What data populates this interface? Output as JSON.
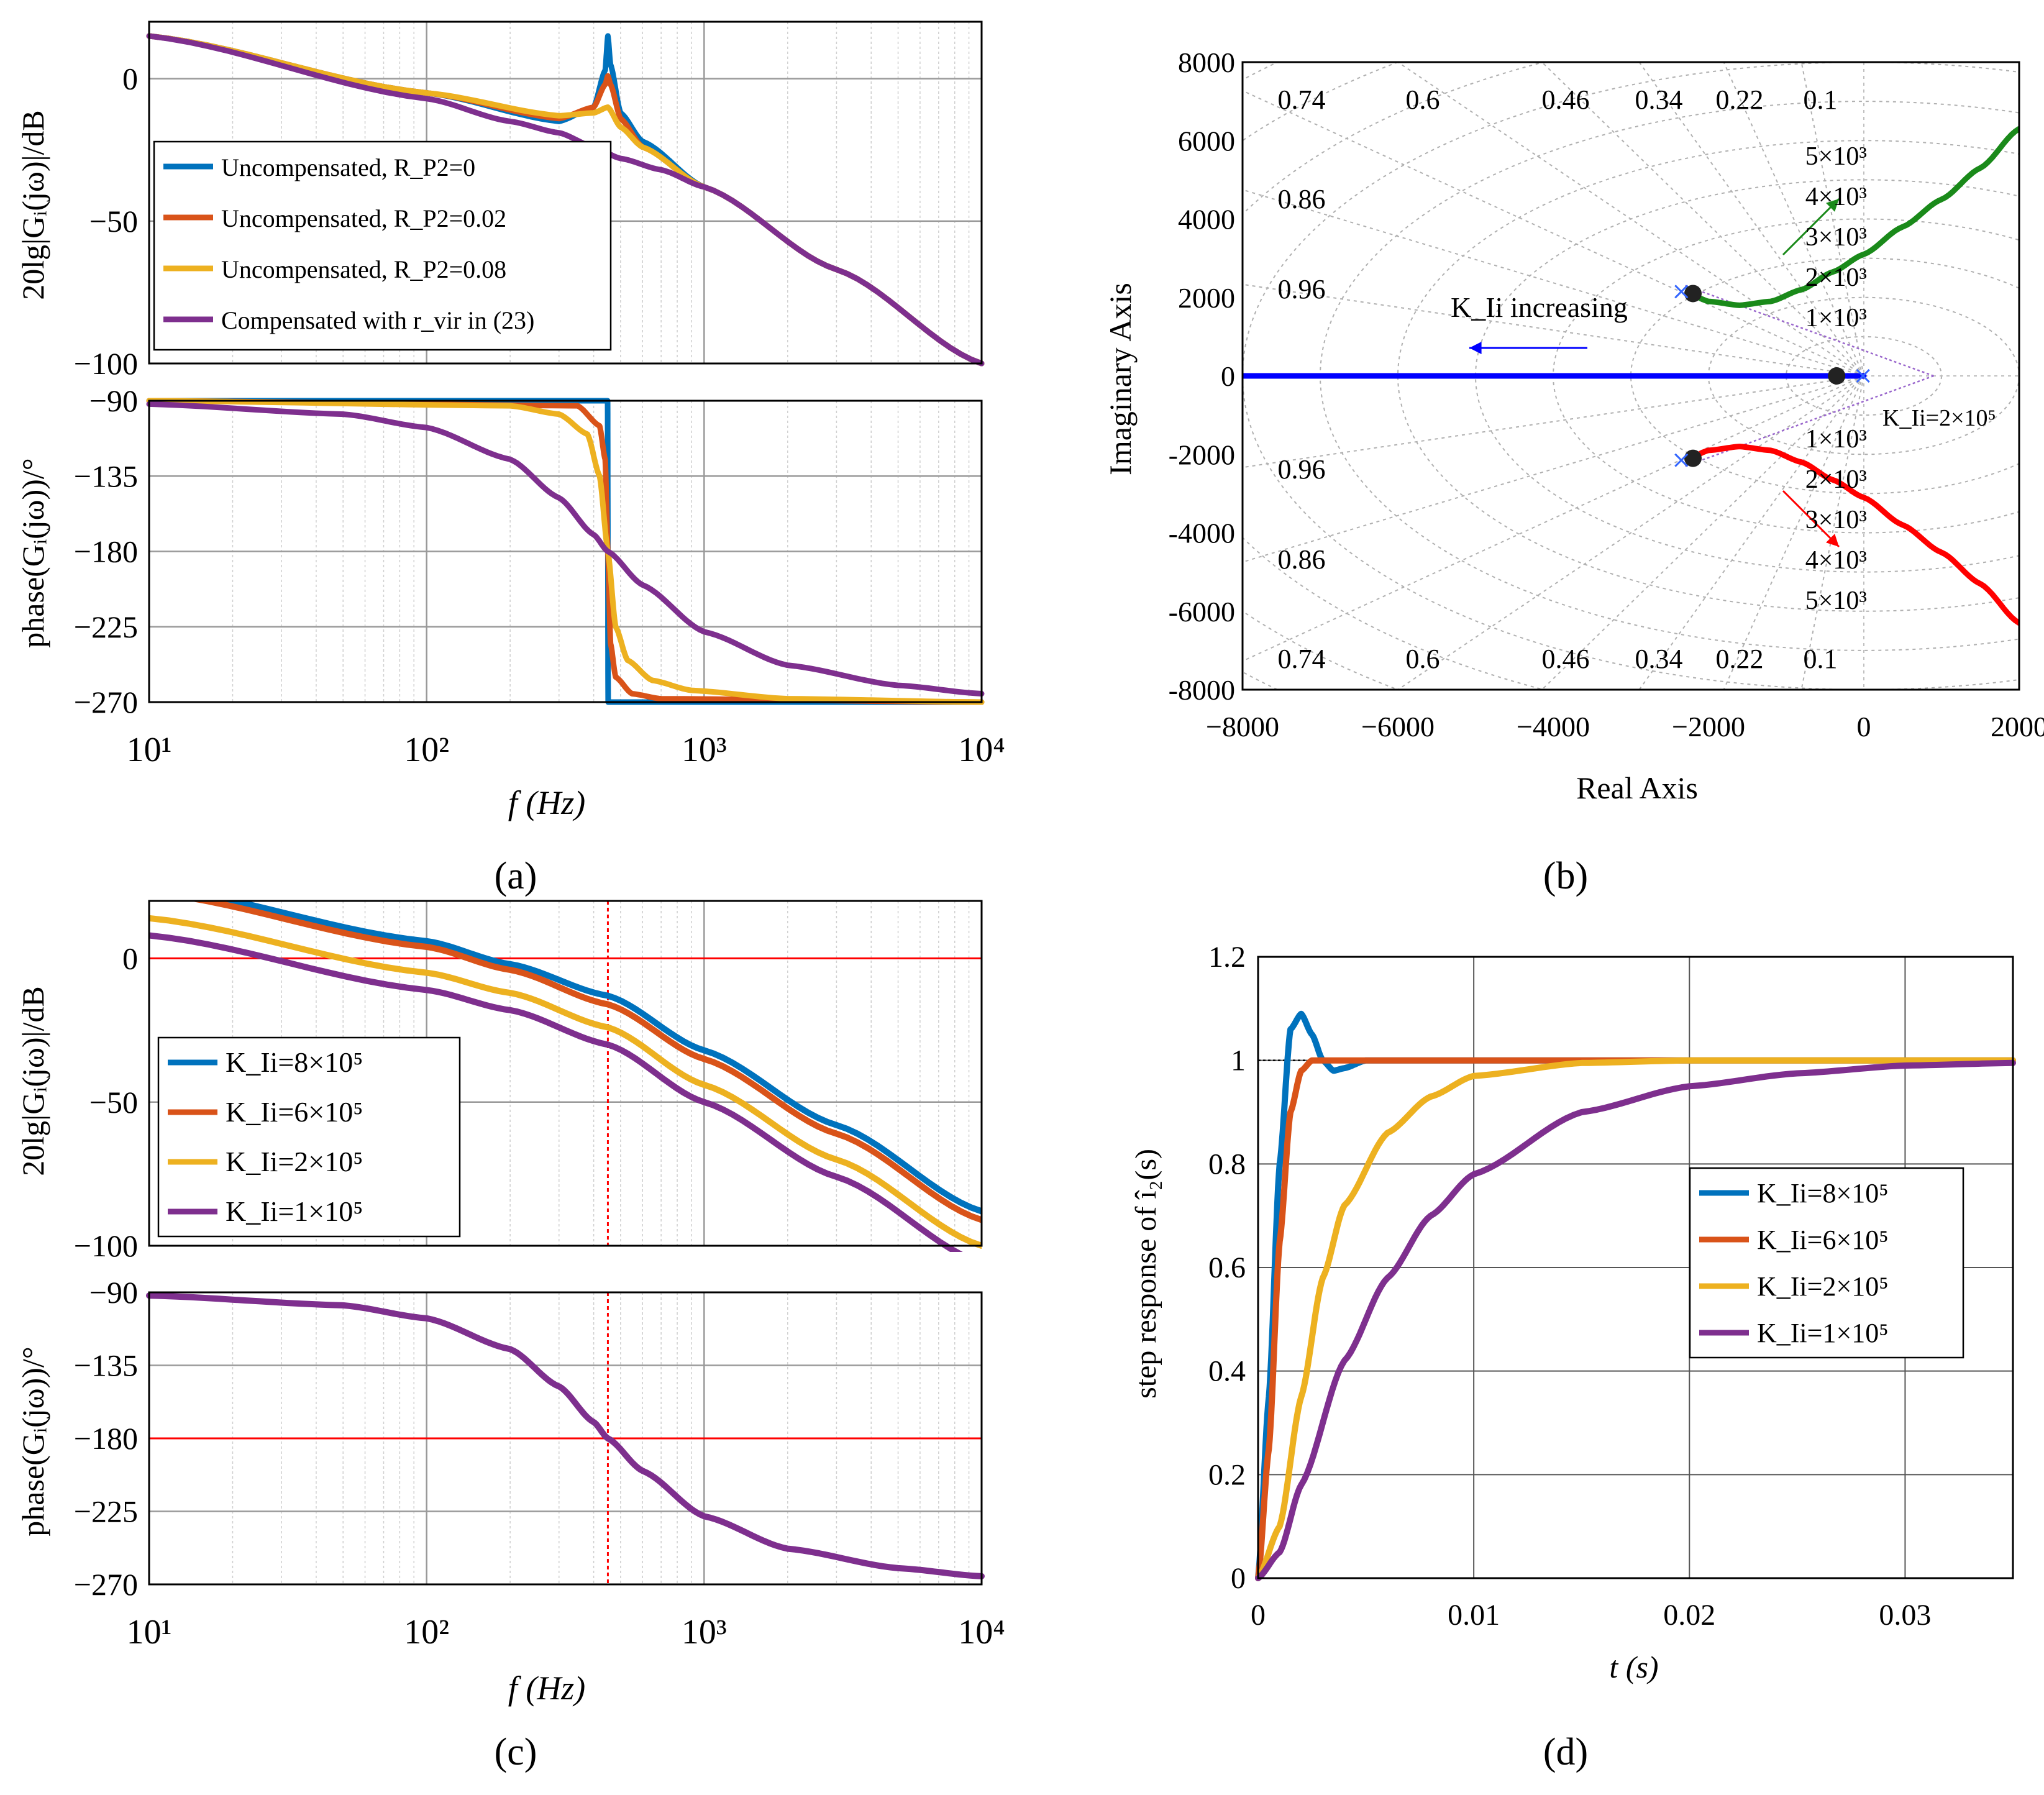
{
  "panels": {
    "a": {
      "caption": "(a)",
      "mag_ylabel": "20lg|Gᵢ(jω)|/dB",
      "phase_ylabel": "phase(Gᵢ(jω))/°",
      "xlabel": "f (Hz)"
    },
    "b": {
      "caption": "(b)",
      "xlabel": "Real Axis",
      "ylabel": "Imaginary Axis"
    },
    "c": {
      "caption": "(c)",
      "mag_ylabel": "20lg|Gᵢ(jω)|/dB",
      "phase_ylabel": "phase(Gᵢ(jω))/°",
      "xlabel": "f (Hz)"
    },
    "d": {
      "caption": "(d)",
      "xlabel": "t (s)",
      "ylabel": "step response of î₂(s)"
    }
  },
  "colors": {
    "blue": "#0072BD",
    "orange": "#D95319",
    "yellow": "#EDB120",
    "purple": "#7E2F8E",
    "green": "#1A8A1A",
    "red": "#FF0000",
    "root_blue": "#0000FF",
    "violet": "#9966CC"
  },
  "chart_data": [
    {
      "panel": "a-magnitude",
      "type": "line",
      "x_scale": "log",
      "xlim": [
        10,
        10000
      ],
      "ylim": [
        -100,
        20
      ],
      "yticks": [
        "0",
        "−50",
        "−100"
      ],
      "legend": "center-left",
      "grid": true,
      "series": [
        {
          "name": "Uncompensated, R_P2=0",
          "x": [
            10,
            100,
            300,
            400,
            440,
            450,
            460,
            500,
            600,
            1000,
            3000,
            10000
          ],
          "values": [
            15,
            -5,
            -15,
            -10,
            3,
            15,
            5,
            -12,
            -22,
            -38,
            -67,
            -100
          ]
        },
        {
          "name": "Uncompensated, R_P2=0.02",
          "x": [
            10,
            100,
            300,
            400,
            440,
            450,
            460,
            500,
            600,
            1000,
            3000,
            10000
          ],
          "values": [
            15,
            -5,
            -14,
            -10,
            -2,
            1,
            -2,
            -14,
            -24,
            -38,
            -67,
            -100
          ]
        },
        {
          "name": "Uncompensated, R_P2=0.08",
          "x": [
            10,
            100,
            300,
            400,
            450,
            500,
            600,
            1000,
            3000,
            10000
          ],
          "values": [
            15,
            -5,
            -13,
            -12,
            -10,
            -17,
            -24,
            -38,
            -67,
            -100
          ]
        },
        {
          "name": "Compensated with r_vir in (23)",
          "x": [
            10,
            100,
            200,
            300,
            400,
            500,
            700,
            1000,
            3000,
            10000
          ],
          "values": [
            15,
            -7,
            -15,
            -19,
            -24,
            -28,
            -32,
            -38,
            -67,
            -100
          ]
        }
      ]
    },
    {
      "panel": "a-phase",
      "type": "line",
      "x_scale": "log",
      "xlim": [
        10,
        10000
      ],
      "ylim": [
        -270,
        -90
      ],
      "yticks": [
        "−90",
        "−135",
        "−180",
        "−225",
        "−270"
      ],
      "xticks": [
        "10¹",
        "10²",
        "10³",
        "10⁴"
      ],
      "grid": true,
      "series": [
        {
          "x": [
            10,
            449,
            451,
            10000
          ],
          "values": [
            -90,
            -90,
            -270,
            -270
          ]
        },
        {
          "x": [
            10,
            350,
            420,
            440,
            450,
            460,
            480,
            550,
            700,
            10000
          ],
          "values": [
            -90,
            -93,
            -105,
            -125,
            -180,
            -235,
            -255,
            -265,
            -268,
            -270
          ]
        },
        {
          "x": [
            10,
            200,
            300,
            380,
            420,
            450,
            480,
            530,
            650,
            900,
            2000,
            10000
          ],
          "values": [
            -90,
            -93,
            -98,
            -110,
            -135,
            -180,
            -225,
            -245,
            -257,
            -263,
            -268,
            -270
          ]
        },
        {
          "x": [
            10,
            50,
            100,
            200,
            300,
            400,
            450,
            600,
            1000,
            2000,
            5000,
            10000
          ],
          "values": [
            -92,
            -98,
            -106,
            -125,
            -148,
            -170,
            -180,
            -200,
            -228,
            -248,
            -260,
            -265
          ]
        }
      ]
    },
    {
      "panel": "b",
      "type": "scatter",
      "xlim": [
        -8000,
        2000
      ],
      "ylim": [
        -8000,
        8000
      ],
      "xticks": [
        "−8000",
        "−6000",
        "−4000",
        "−2000",
        "0",
        "2000"
      ],
      "yticks": [
        "8000",
        "6000",
        "4000",
        "2000",
        "0",
        "-2000",
        "-4000",
        "-6000",
        "-8000"
      ],
      "damping_labels": [
        "0.74",
        "0.6",
        "0.46",
        "0.34",
        "0.22",
        "0.1",
        "0.86",
        "0.96"
      ],
      "frequency_labels": [
        "5×10³",
        "4×10³",
        "3×10³",
        "2×10³",
        "1×10³"
      ],
      "annotations": [
        "K_Ii increasing",
        "K_Ii=2×10⁵"
      ],
      "series": [
        {
          "x": [
            -2250,
            -2000,
            -1600,
            -1200,
            -800,
            -400,
            0,
            500,
            1000,
            1500,
            2000
          ],
          "values": [
            2100,
            1900,
            1800,
            1900,
            2200,
            2650,
            3100,
            3800,
            4500,
            5300,
            6300
          ]
        },
        {
          "x": [
            -2250,
            -2000,
            -1600,
            -1200,
            -800,
            -400,
            0,
            500,
            1000,
            1500,
            2000
          ],
          "values": [
            -2100,
            -1900,
            -1800,
            -1900,
            -2200,
            -2650,
            -3100,
            -3800,
            -4500,
            -5300,
            -6300
          ]
        },
        {
          "x": [
            -8000,
            0
          ],
          "values": [
            0,
            0
          ]
        }
      ],
      "closed_loop_poles": [
        {
          "x": -2200,
          "y": 2100
        },
        {
          "x": -2200,
          "y": -2100
        },
        {
          "x": -350,
          "y": 0
        }
      ]
    },
    {
      "panel": "c-magnitude",
      "type": "line",
      "x_scale": "log",
      "xlim": [
        10,
        10000
      ],
      "ylim": [
        -100,
        20
      ],
      "yticks": [
        "0",
        "−50",
        "−100"
      ],
      "legend": "center-left",
      "grid": true,
      "series": [
        {
          "name": "K_Ii=8×10⁵",
          "x": [
            10,
            100,
            200,
            450,
            1000,
            3000,
            10000
          ],
          "values": [
            25,
            6,
            -2,
            -13,
            -32,
            -58,
            -88
          ]
        },
        {
          "name": "K_Ii=6×10⁵",
          "x": [
            10,
            100,
            200,
            450,
            1000,
            3000,
            10000
          ],
          "values": [
            23,
            4,
            -4,
            -16,
            -35,
            -61,
            -91
          ]
        },
        {
          "name": "K_Ii=2×10⁵",
          "x": [
            10,
            100,
            200,
            450,
            1000,
            3000,
            10000
          ],
          "values": [
            14,
            -5,
            -12,
            -24,
            -44,
            -70,
            -100
          ]
        },
        {
          "name": "K_Ii=1×10⁵",
          "x": [
            10,
            100,
            200,
            450,
            1000,
            3000,
            10000
          ],
          "values": [
            8,
            -11,
            -18,
            -30,
            -50,
            -76,
            -106
          ]
        }
      ]
    },
    {
      "panel": "c-phase",
      "type": "line",
      "x_scale": "log",
      "xlim": [
        10,
        10000
      ],
      "ylim": [
        -270,
        -90
      ],
      "yticks": [
        "−90",
        "−135",
        "−180",
        "−225",
        "−270"
      ],
      "xticks": [
        "10¹",
        "10²",
        "10³",
        "10⁴"
      ],
      "grid": true,
      "series": [
        {
          "x": [
            10,
            50,
            100,
            200,
            300,
            400,
            450,
            600,
            1000,
            2000,
            5000,
            10000
          ],
          "values": [
            -92,
            -98,
            -106,
            -125,
            -148,
            -170,
            -180,
            -200,
            -228,
            -248,
            -260,
            -265
          ]
        }
      ]
    },
    {
      "panel": "d",
      "type": "line",
      "xlim": [
        0,
        0.035
      ],
      "ylim": [
        0,
        1.2
      ],
      "xticks": [
        "0",
        "0.01",
        "0.02",
        "0.03"
      ],
      "yticks": [
        "1.2",
        "1",
        "0.8",
        "0.6",
        "0.4",
        "0.2",
        "0"
      ],
      "legend": "center-right",
      "grid": true,
      "series": [
        {
          "name": "K_Ii=8×10⁵",
          "x": [
            0,
            0.0005,
            0.001,
            0.0015,
            0.002,
            0.0025,
            0.003,
            0.0035,
            0.004,
            0.005,
            0.035
          ],
          "values": [
            0,
            0.35,
            0.8,
            1.06,
            1.09,
            1.05,
            1.0,
            0.98,
            0.985,
            1.0,
            1.0
          ]
        },
        {
          "name": "K_Ii=6×10⁵",
          "x": [
            0,
            0.0005,
            0.001,
            0.0015,
            0.002,
            0.0025,
            0.003,
            0.035
          ],
          "values": [
            0,
            0.25,
            0.65,
            0.9,
            0.98,
            1.0,
            1.0,
            1.0
          ]
        },
        {
          "name": "K_Ii=2×10⁵",
          "x": [
            0,
            0.001,
            0.002,
            0.003,
            0.004,
            0.006,
            0.008,
            0.01,
            0.015,
            0.02,
            0.035
          ],
          "values": [
            0,
            0.1,
            0.35,
            0.58,
            0.72,
            0.86,
            0.93,
            0.97,
            0.995,
            1.0,
            1.0
          ]
        },
        {
          "name": "K_Ii=1×10⁵",
          "x": [
            0,
            0.001,
            0.002,
            0.004,
            0.006,
            0.008,
            0.01,
            0.015,
            0.02,
            0.025,
            0.03,
            0.035
          ],
          "values": [
            0,
            0.05,
            0.18,
            0.42,
            0.58,
            0.7,
            0.78,
            0.9,
            0.95,
            0.975,
            0.99,
            0.995
          ]
        }
      ]
    }
  ]
}
